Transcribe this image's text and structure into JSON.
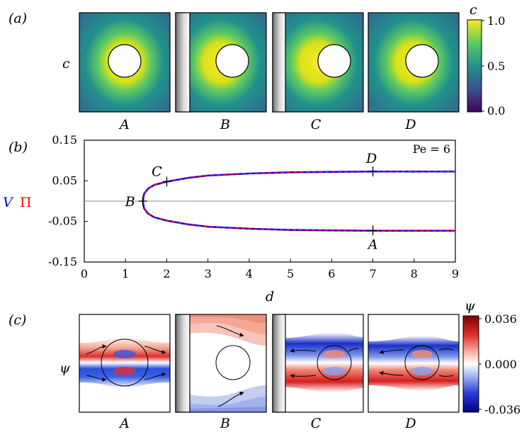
{
  "panels": {
    "a": {
      "label": "(a)",
      "row_label": "c",
      "cases": [
        "A",
        "B",
        "C",
        "D"
      ],
      "wall": [
        false,
        true,
        true,
        false
      ],
      "colorbar": {
        "title": "c",
        "ticks": [
          "1.0",
          "0.5",
          "0.0"
        ],
        "colors": [
          "#fde725",
          "#21918c",
          "#440154"
        ]
      }
    },
    "b": {
      "label": "(b)",
      "annotation": "Pe = 6",
      "xlabel": "d",
      "ylabel_v": "V",
      "ylabel_pi": "Π",
      "point_labels": [
        "A",
        "B",
        "C",
        "D"
      ]
    },
    "c": {
      "label": "(c)",
      "row_label": "ψ",
      "cases": [
        "A",
        "B",
        "C",
        "D"
      ],
      "wall": [
        false,
        true,
        true,
        false
      ],
      "colorbar": {
        "title": "ψ",
        "ticks": [
          "0.036",
          "0.000",
          "-0.036"
        ],
        "colors": [
          "#8b0000",
          "#ffffff",
          "#00007f"
        ]
      }
    }
  },
  "chart_data": {
    "type": "line",
    "xlim": [
      0,
      9
    ],
    "ylim": [
      -0.15,
      0.15
    ],
    "x_ticks": [
      "0",
      "1",
      "2",
      "3",
      "4",
      "5",
      "6",
      "7",
      "8",
      "9"
    ],
    "y_ticks": [
      "0.15",
      "0.05",
      "-0.05",
      "-0.15"
    ],
    "series": [
      {
        "name": "V",
        "color": "#0000ff",
        "style": "solid",
        "x": [
          1.42,
          1.45,
          1.55,
          1.7,
          2.0,
          2.5,
          3,
          4,
          5,
          6,
          7,
          8,
          9
        ],
        "upper": [
          0.0,
          0.018,
          0.031,
          0.04,
          0.048,
          0.057,
          0.063,
          0.068,
          0.071,
          0.072,
          0.073,
          0.073,
          0.073
        ]
      },
      {
        "name": "Π",
        "color": "#ff0000",
        "style": "dashed",
        "x": [
          1.42,
          1.45,
          1.55,
          1.7,
          2.0,
          2.5,
          3,
          4,
          5,
          6,
          7,
          8,
          9
        ],
        "upper": [
          0.0,
          0.018,
          0.031,
          0.04,
          0.048,
          0.057,
          0.063,
          0.068,
          0.071,
          0.072,
          0.073,
          0.073,
          0.073
        ]
      }
    ],
    "markers": [
      {
        "label": "A",
        "x": 7,
        "y": -0.072
      },
      {
        "label": "B",
        "x": 1.42,
        "y": 0.0
      },
      {
        "label": "C",
        "x": 2.0,
        "y": 0.048
      },
      {
        "label": "D",
        "x": 7,
        "y": 0.073
      }
    ]
  }
}
